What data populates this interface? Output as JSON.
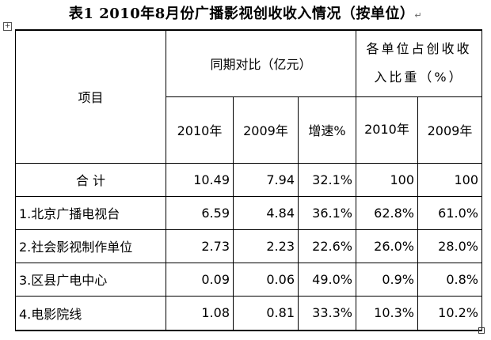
{
  "title": "表1   2010年8月份广播影视创收收入情况（按单位）",
  "header": {
    "item": "项目",
    "group1": "同期对比（亿元）",
    "group2": "各单位占创收收入比重（%）",
    "y2010_a": "2010年",
    "y2009_a": "2009年",
    "growth": "增速%",
    "y2010_b": "2010年",
    "y2009_b": "2009年"
  },
  "rows": [
    {
      "label": "合  计",
      "v2010": "10.49",
      "v2009": "7.94",
      "growth": "32.1%",
      "s2010": "100",
      "s2009": "100"
    },
    {
      "label": "1.北京广播电视台",
      "v2010": "6.59",
      "v2009": "4.84",
      "growth": "36.1%",
      "s2010": "62.8%",
      "s2009": "61.0%"
    },
    {
      "label": "2.社会影视制作单位",
      "v2010": "2.73",
      "v2009": "2.23",
      "growth": "22.6%",
      "s2010": "26.0%",
      "s2009": "28.0%"
    },
    {
      "label": "3.区县广电中心",
      "v2010": "0.09",
      "v2009": "0.06",
      "growth": "49.0%",
      "s2010": "0.9%",
      "s2009": "0.8%"
    },
    {
      "label": "4.电影院线",
      "v2010": "1.08",
      "v2009": "0.81",
      "growth": "33.3%",
      "s2010": "10.3%",
      "s2009": "10.2%"
    }
  ]
}
